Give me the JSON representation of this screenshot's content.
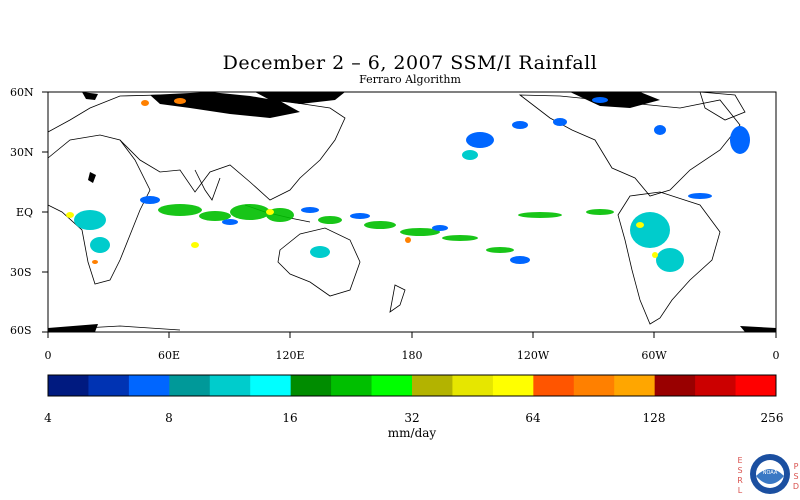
{
  "title": "December 2 – 6, 2007 SSM/I Rainfall",
  "subtitle": "Ferraro Algorithm",
  "map": {
    "lat_labels": [
      "60N",
      "30N",
      "EQ",
      "30S",
      "60S"
    ],
    "lon_labels": [
      "0",
      "60E",
      "120E",
      "180",
      "120W",
      "60W",
      "0"
    ]
  },
  "colorbar": {
    "units": "mm/day",
    "tick_labels": [
      "4",
      "8",
      "16",
      "32",
      "64",
      "128",
      "256"
    ],
    "colors": [
      "#001a80",
      "#0033b3",
      "#0066ff",
      "#009999",
      "#00cccc",
      "#00ffff",
      "#008c00",
      "#00bf00",
      "#00ff00",
      "#b3b300",
      "#e6e600",
      "#ffff00",
      "#ff5500",
      "#ff8000",
      "#ffa600",
      "#990000",
      "#cc0000",
      "#ff0000"
    ]
  },
  "logo": {
    "left_letters": [
      "E",
      "S",
      "R",
      "L"
    ],
    "right_letters": [
      "P",
      "S",
      "D"
    ],
    "seal_text": "NOAA"
  }
}
